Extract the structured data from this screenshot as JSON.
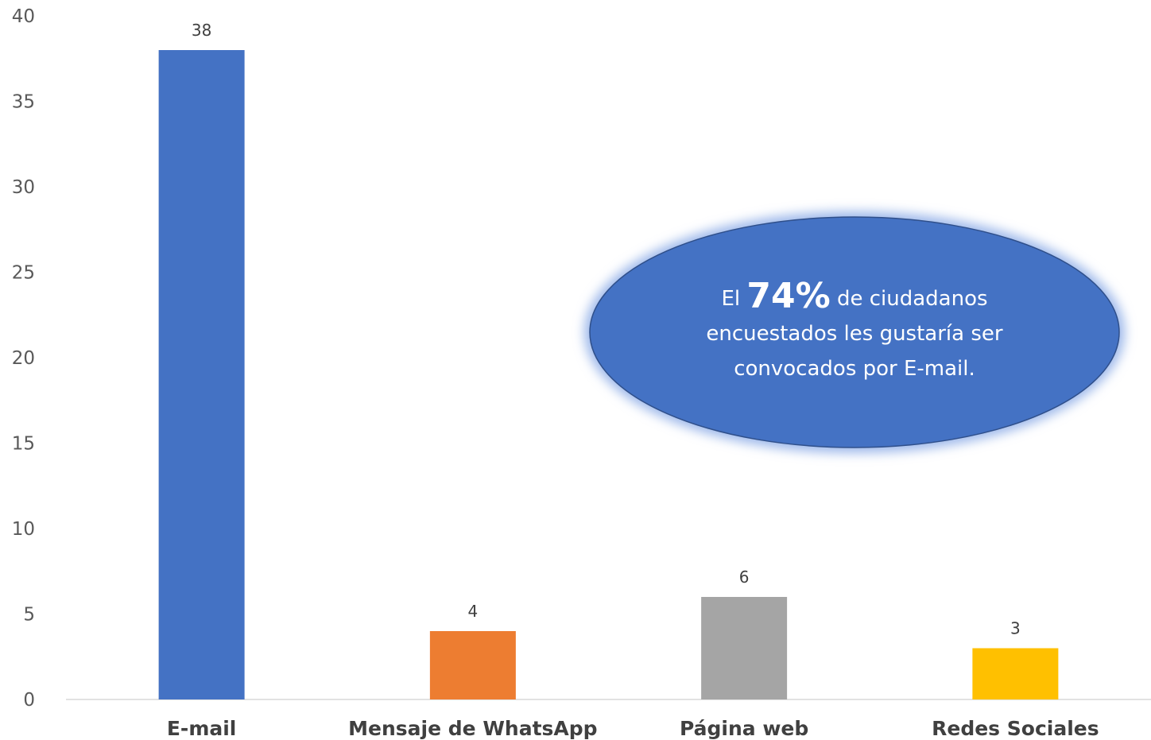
{
  "chart_data": {
    "type": "bar",
    "categories": [
      "E-mail",
      "Mensaje de WhatsApp",
      "Página web",
      "Redes Sociales"
    ],
    "values": [
      38,
      4,
      6,
      3
    ],
    "colors": [
      "#4472C4",
      "#ED7D31",
      "#A5A5A5",
      "#FFC000"
    ],
    "ylim": [
      0,
      40
    ],
    "yticks": [
      0,
      5,
      10,
      15,
      20,
      25,
      30,
      35,
      40
    ],
    "grid": false,
    "data_labels": true
  },
  "annotation": {
    "prefix": "El ",
    "highlight": "74%",
    "suffix": " de ciudadanos encuestados les gustaría ser convocados por E-mail.",
    "fill_color": "#4472C4"
  }
}
